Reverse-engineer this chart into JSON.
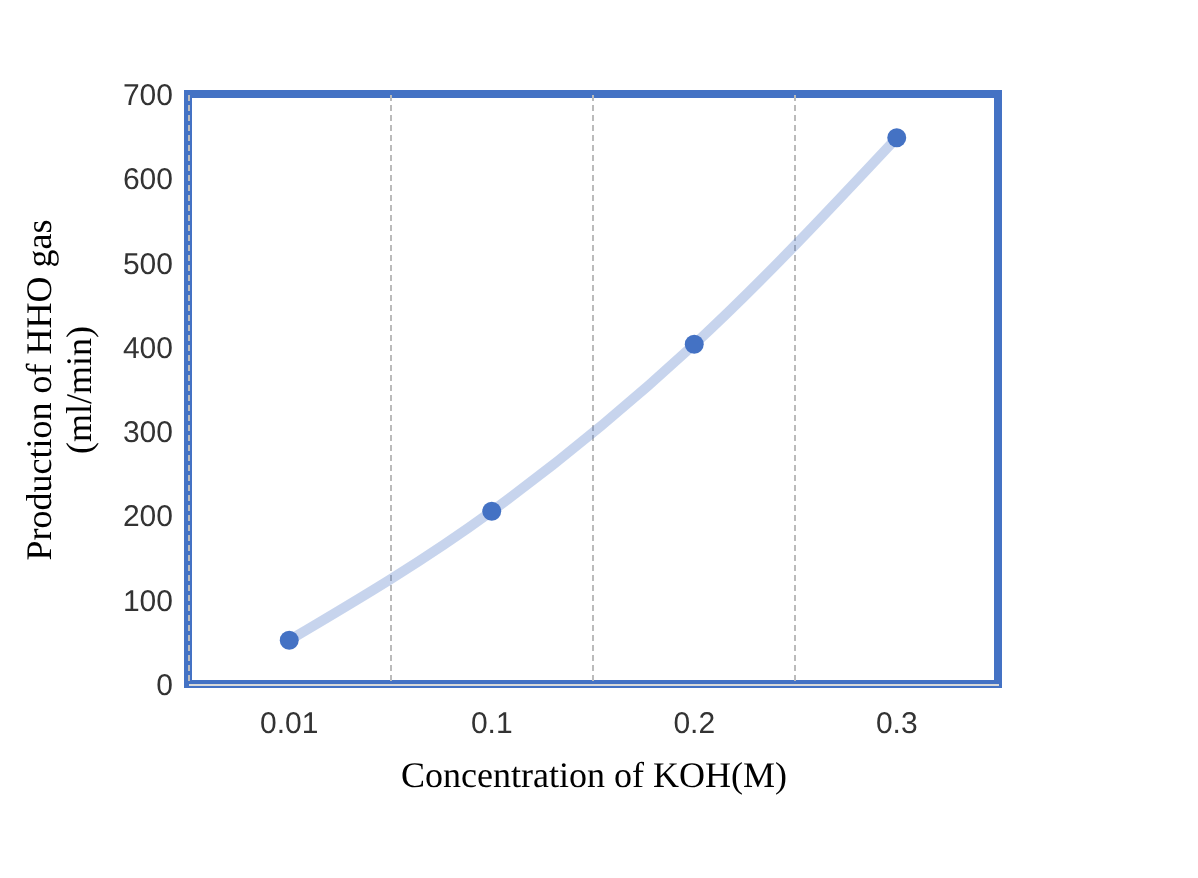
{
  "chart_data": {
    "type": "line",
    "xlabel": "Concentration of KOH(M)",
    "ylabel": "Production of HHO gas\n(ml/min)",
    "categories": [
      "0.01",
      "0.1",
      "0.2",
      "0.3"
    ],
    "series": [
      {
        "color": "#4472c4",
        "values": [
          52,
          205,
          403,
          648
        ]
      }
    ],
    "ylim": [
      0,
      700
    ],
    "yticks": [
      0,
      100,
      200,
      300,
      400,
      500,
      600,
      700
    ],
    "grid": "x",
    "marker": "circle",
    "line_style": "solid"
  }
}
